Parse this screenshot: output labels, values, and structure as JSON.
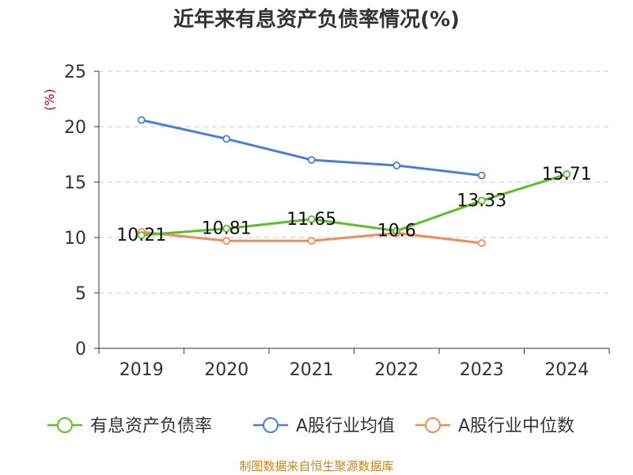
{
  "chart_data": {
    "type": "line",
    "title": "近年来有息资产负债率情况(%)",
    "yunit": "(%)",
    "categories": [
      "2019",
      "2020",
      "2021",
      "2022",
      "2023",
      "2024"
    ],
    "ylim": [
      0,
      25
    ],
    "yticks": [
      0,
      5,
      10,
      15,
      20,
      25
    ],
    "grid": true,
    "legend_position": "bottom",
    "series": [
      {
        "name": "有息资产负债率",
        "color": "#5cbf2a",
        "values": [
          10.21,
          10.81,
          11.65,
          10.6,
          13.33,
          15.71
        ],
        "data_labels": [
          "10.21",
          "10.81",
          "11.65",
          "10.6",
          "13.33",
          "15.71"
        ]
      },
      {
        "name": "A股行业均值",
        "color": "#4a7fd6",
        "values": [
          20.6,
          18.9,
          17.0,
          16.5,
          15.6,
          null
        ]
      },
      {
        "name": "A股行业中位数",
        "color": "#f08c5a",
        "values": [
          10.5,
          9.7,
          9.7,
          10.4,
          9.5,
          null
        ]
      }
    ]
  },
  "source": "制图数据来自恒生聚源数据库"
}
